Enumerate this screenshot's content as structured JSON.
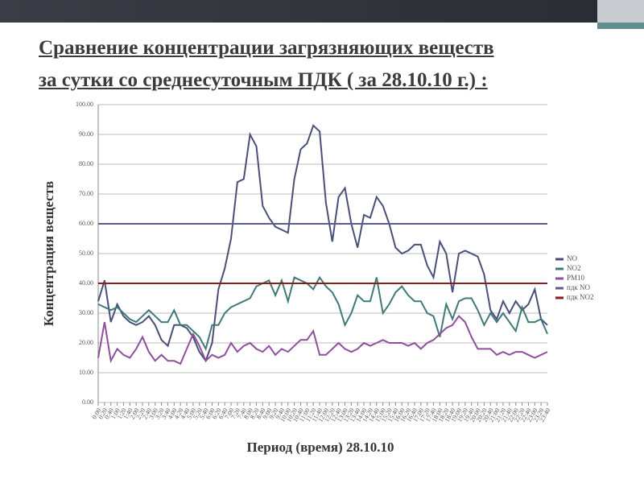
{
  "header": {
    "title_lines": [
      "Сравнение концентрации загрязняющих веществ",
      "за сутки со среднесуточным ПДК ( за 28.10.10 г.) :"
    ]
  },
  "chart_data": {
    "type": "line",
    "ylabel": "Концентрация веществ",
    "xlabel": "Период (время) 28.10.10",
    "categories": [
      "0:00",
      "0:20",
      "0:40",
      "1:00",
      "1:20",
      "1:40",
      "2:00",
      "2:20",
      "2:40",
      "3:00",
      "3:20",
      "3:40",
      "4:00",
      "4:20",
      "4:40",
      "5:00",
      "5:20",
      "5:40",
      "6:00",
      "6:20",
      "6:40",
      "7:00",
      "7:20",
      "7:40",
      "8:00",
      "8:20",
      "8:40",
      "9:00",
      "9:20",
      "9:40",
      "10:00",
      "10:20",
      "10:40",
      "11:00",
      "11:20",
      "11:40",
      "12:00",
      "12:20",
      "12:40",
      "13:00",
      "13:20",
      "13:40",
      "14:00",
      "14:20",
      "14:40",
      "15:00",
      "15:20",
      "15:40",
      "16:00",
      "16:20",
      "16:40",
      "17:00",
      "17:20",
      "17:40",
      "18:00",
      "18:20",
      "18:40",
      "19:00",
      "19:20",
      "19:40",
      "20:00",
      "20:20",
      "20:40",
      "21:00",
      "21:20",
      "21:40",
      "22:00",
      "22:20",
      "22:40",
      "23:00",
      "23:20",
      "23:40"
    ],
    "series": [
      {
        "name": "NO",
        "color": "#4a4f7a",
        "values": [
          34,
          41,
          27,
          33,
          29,
          27,
          26,
          27,
          29,
          26,
          21,
          19,
          26,
          26,
          25,
          22,
          17,
          14,
          20,
          38,
          45,
          55,
          74,
          75,
          90,
          86,
          66,
          62,
          59,
          58,
          57,
          75,
          85,
          87,
          93,
          91,
          67,
          54,
          69,
          72,
          60,
          52,
          63,
          62,
          69,
          66,
          60,
          52,
          50,
          51,
          53,
          53,
          46,
          42,
          54,
          50,
          37,
          50,
          51,
          50,
          49,
          43,
          31,
          28,
          34,
          30,
          34,
          31,
          33,
          38,
          28,
          26
        ]
      },
      {
        "name": "NO2",
        "color": "#3f7a78",
        "values": [
          33,
          32,
          31,
          32,
          30,
          28,
          27,
          29,
          31,
          29,
          27,
          27,
          31,
          26,
          26,
          24,
          22,
          18,
          26,
          26,
          30,
          32,
          33,
          34,
          35,
          39,
          40,
          41,
          36,
          41,
          34,
          42,
          41,
          40,
          38,
          42,
          39,
          37,
          33,
          26,
          30,
          36,
          34,
          34,
          42,
          30,
          33,
          37,
          39,
          36,
          34,
          34,
          30,
          29,
          22,
          33,
          28,
          34,
          35,
          35,
          31,
          26,
          30,
          27,
          30,
          27,
          24,
          32,
          27,
          27,
          28,
          23
        ]
      },
      {
        "name": "PM10",
        "color": "#8e4f9c",
        "values": [
          15,
          27,
          14,
          18,
          16,
          15,
          18,
          22,
          17,
          14,
          16,
          14,
          14,
          13,
          18,
          23,
          19,
          14,
          16,
          15,
          16,
          20,
          17,
          19,
          20,
          18,
          17,
          19,
          16,
          18,
          17,
          19,
          21,
          21,
          24,
          16,
          16,
          18,
          20,
          18,
          17,
          18,
          20,
          19,
          20,
          21,
          20,
          20,
          20,
          19,
          20,
          18,
          20,
          21,
          23,
          25,
          26,
          29,
          27,
          22,
          18,
          18,
          18,
          16,
          17,
          16,
          17,
          17,
          16,
          15,
          16,
          17
        ]
      },
      {
        "name": "пдк NO",
        "color": "#5c5f8e",
        "values": [
          60,
          60,
          60,
          60,
          60,
          60,
          60,
          60,
          60,
          60,
          60,
          60,
          60,
          60,
          60,
          60,
          60,
          60,
          60,
          60,
          60,
          60,
          60,
          60,
          60,
          60,
          60,
          60,
          60,
          60,
          60,
          60,
          60,
          60,
          60,
          60,
          60,
          60,
          60,
          60,
          60,
          60,
          60,
          60,
          60,
          60,
          60,
          60,
          60,
          60,
          60,
          60,
          60,
          60,
          60,
          60,
          60,
          60,
          60,
          60,
          60,
          60,
          60,
          60,
          60,
          60,
          60,
          60,
          60,
          60,
          60,
          60
        ]
      },
      {
        "name": "пдк NO2",
        "color": "#8b1c1c",
        "values": [
          40,
          40,
          40,
          40,
          40,
          40,
          40,
          40,
          40,
          40,
          40,
          40,
          40,
          40,
          40,
          40,
          40,
          40,
          40,
          40,
          40,
          40,
          40,
          40,
          40,
          40,
          40,
          40,
          40,
          40,
          40,
          40,
          40,
          40,
          40,
          40,
          40,
          40,
          40,
          40,
          40,
          40,
          40,
          40,
          40,
          40,
          40,
          40,
          40,
          40,
          40,
          40,
          40,
          40,
          40,
          40,
          40,
          40,
          40,
          40,
          40,
          40,
          40,
          40,
          40,
          40,
          40,
          40,
          40,
          40,
          40,
          40
        ]
      }
    ],
    "ylim": [
      0,
      100
    ],
    "yticks": [
      {
        "value": 0,
        "label": "0.00"
      },
      {
        "value": 10,
        "label": "10.00"
      },
      {
        "value": 20,
        "label": "20.00"
      },
      {
        "value": 30,
        "label": "30.00"
      },
      {
        "value": 40,
        "label": "40.00"
      },
      {
        "value": 50,
        "label": "50.00"
      },
      {
        "value": 60,
        "label": "60.00"
      },
      {
        "value": 70,
        "label": "70.00"
      },
      {
        "value": 80,
        "label": "80.00"
      },
      {
        "value": 90,
        "label": "90.00"
      },
      {
        "value": 100,
        "label": "100.00"
      }
    ],
    "grid": true,
    "legend": "right"
  }
}
